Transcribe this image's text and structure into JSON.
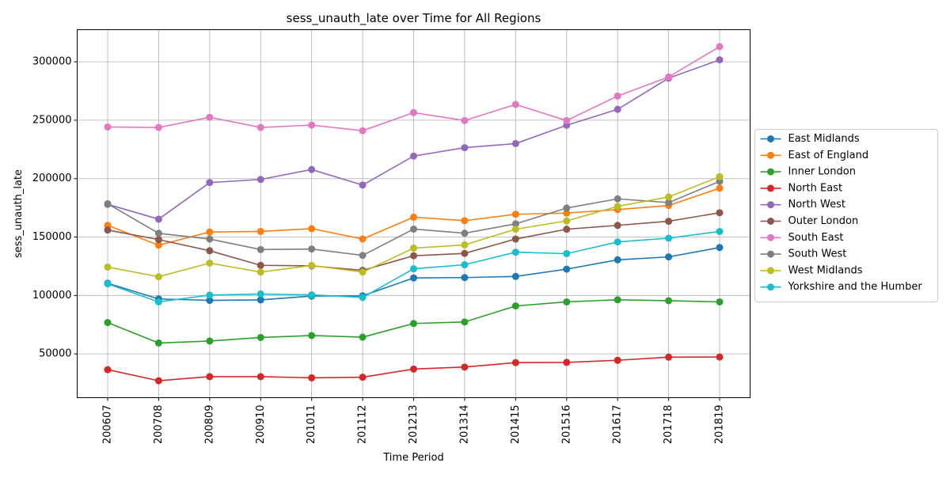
{
  "chart_data": {
    "type": "line",
    "title": "sess_unauth_late over Time for All Regions",
    "xlabel": "Time Period",
    "ylabel": "sess_unauth_late",
    "categories": [
      "200607",
      "200708",
      "200809",
      "200910",
      "201011",
      "201112",
      "201213",
      "201314",
      "201415",
      "201516",
      "201617",
      "201718",
      "201819"
    ],
    "ylim": [
      12500,
      327500
    ],
    "yticks": [
      50000,
      100000,
      150000,
      200000,
      250000,
      300000
    ],
    "grid": true,
    "legend_position": "right",
    "series": [
      {
        "name": "East Midlands",
        "color": "#1f77b4",
        "values": [
          110500,
          97000,
          95800,
          96200,
          99500,
          99700,
          115000,
          115300,
          116300,
          122500,
          130500,
          133000,
          141000
        ]
      },
      {
        "name": "East of England",
        "color": "#ff7f0e",
        "values": [
          160000,
          143000,
          154300,
          154800,
          157200,
          148300,
          167000,
          164000,
          169500,
          170500,
          173500,
          177000,
          191800
        ]
      },
      {
        "name": "Inner London",
        "color": "#2ca02c",
        "values": [
          76800,
          59300,
          61000,
          64000,
          65700,
          64300,
          76000,
          77300,
          91000,
          94500,
          96300,
          95500,
          94500
        ]
      },
      {
        "name": "North East",
        "color": "#d62728",
        "values": [
          36500,
          27000,
          30500,
          30500,
          29500,
          30000,
          37000,
          38700,
          42500,
          42700,
          44500,
          47200,
          47300
        ]
      },
      {
        "name": "North West",
        "color": "#9467bd",
        "values": [
          178000,
          165300,
          196600,
          199300,
          207800,
          194500,
          219300,
          226500,
          230000,
          245700,
          259300,
          286000,
          301700
        ]
      },
      {
        "name": "Outer London",
        "color": "#8c564b",
        "values": [
          156000,
          147800,
          138300,
          125800,
          125300,
          121500,
          134000,
          136000,
          148300,
          156700,
          160000,
          163500,
          170800
        ]
      },
      {
        "name": "South East",
        "color": "#e377c2",
        "values": [
          244200,
          243800,
          252500,
          243800,
          245800,
          241000,
          256500,
          249700,
          263500,
          249700,
          270700,
          287000,
          313000
        ]
      },
      {
        "name": "South West",
        "color": "#7f7f7f",
        "values": [
          178500,
          153200,
          148300,
          139300,
          139700,
          134300,
          156800,
          153300,
          161300,
          174800,
          182700,
          179500,
          197700
        ]
      },
      {
        "name": "West Midlands",
        "color": "#bcbd22",
        "values": [
          124300,
          116000,
          127700,
          120000,
          125700,
          120000,
          140500,
          143300,
          156700,
          163800,
          176300,
          184300,
          201700
        ]
      },
      {
        "name": "Yorkshire and the Humber",
        "color": "#17becf",
        "values": [
          110000,
          94500,
          100300,
          101300,
          100500,
          98300,
          122800,
          126300,
          137000,
          135800,
          145800,
          149000,
          154800
        ]
      }
    ]
  }
}
